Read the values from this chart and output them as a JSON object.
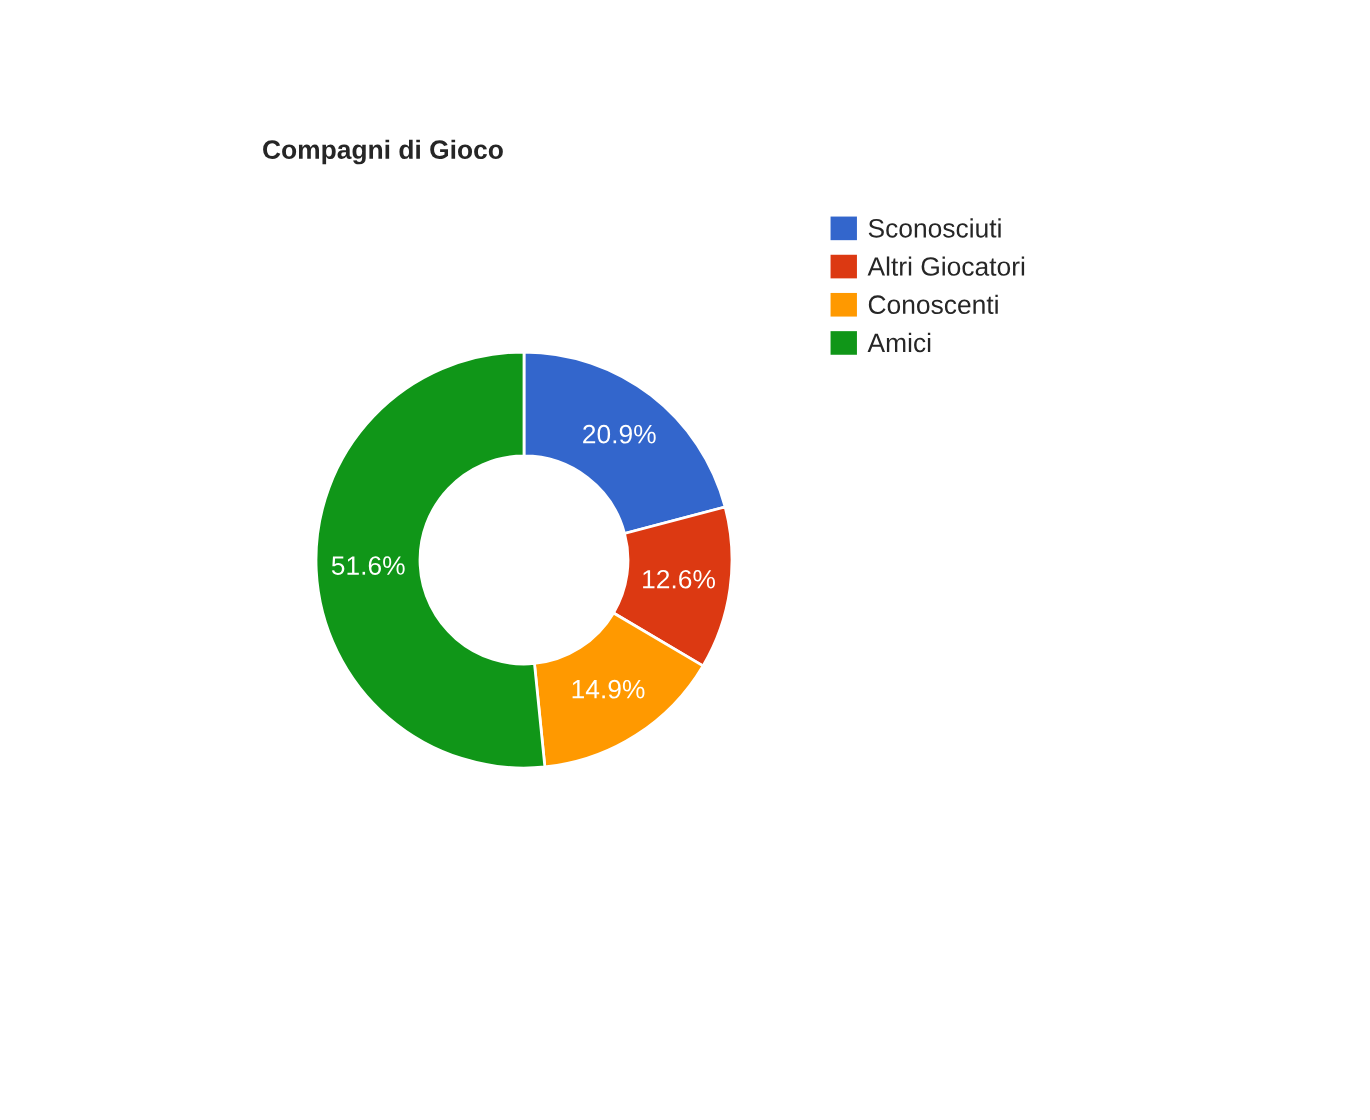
{
  "chart_data": {
    "type": "donut",
    "title": "Compagni di Gioco",
    "categories": [
      "Sconosciuti",
      "Altri Giocatori",
      "Conoscenti",
      "Amici"
    ],
    "values": [
      20.9,
      12.6,
      14.9,
      51.6
    ],
    "colors": [
      "#3366cc",
      "#dc3912",
      "#ff9900",
      "#109618"
    ],
    "value_labels": [
      "20.9%",
      "12.6%",
      "14.9%",
      "51.6%"
    ],
    "legend": "right"
  }
}
